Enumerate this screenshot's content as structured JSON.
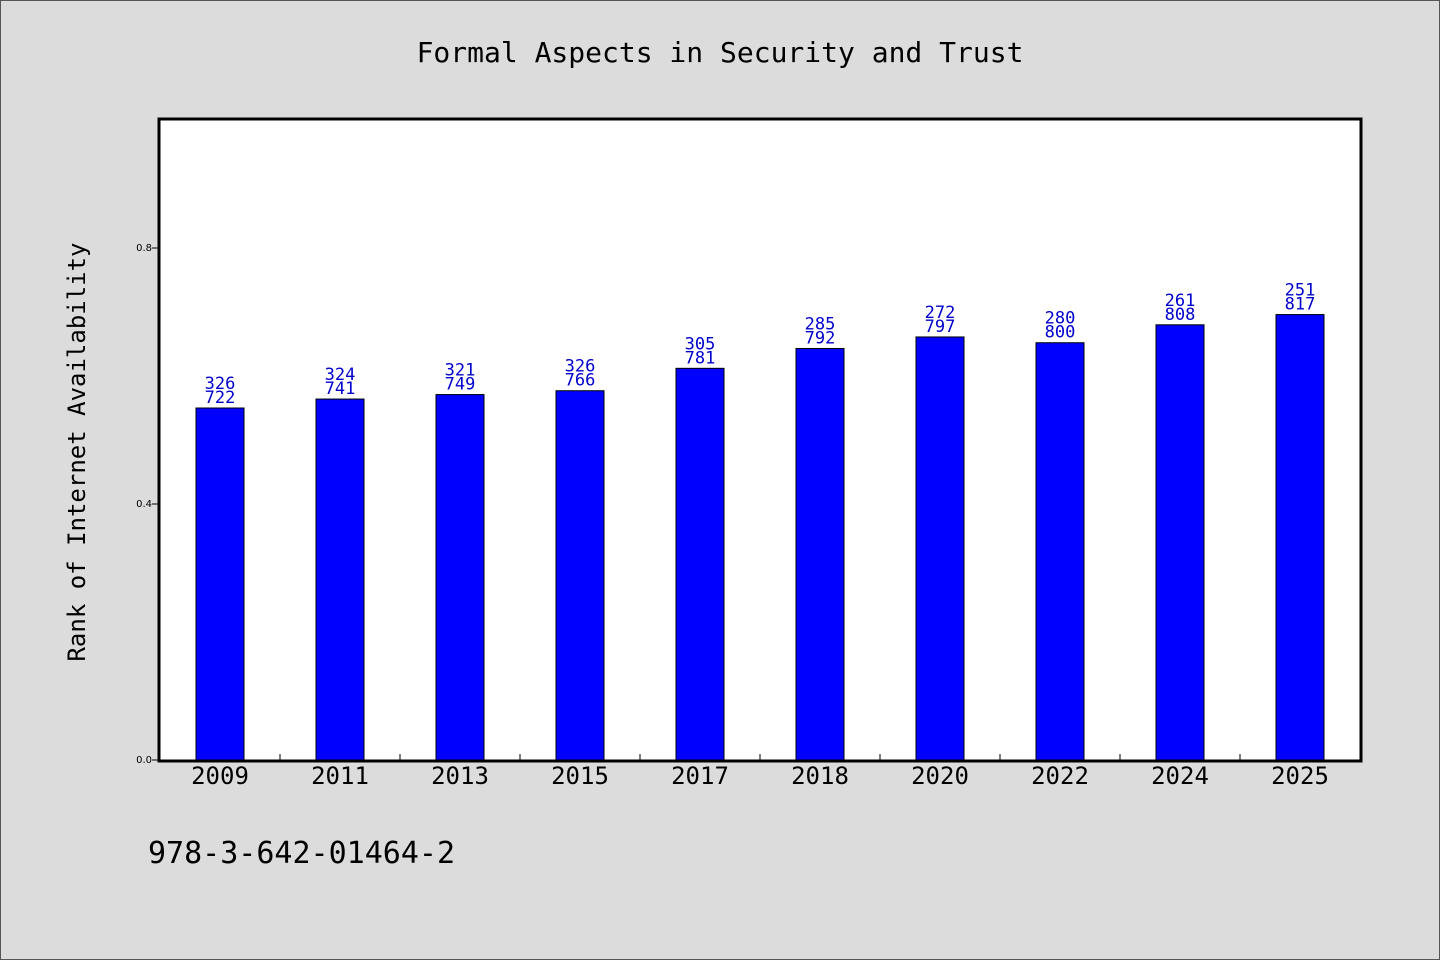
{
  "chart_data": {
    "type": "bar",
    "title": "Formal Aspects in Security and Trust",
    "xlabel": "",
    "ylabel": "Rank of Internet Availability",
    "categories": [
      "2009",
      "2011",
      "2013",
      "2015",
      "2017",
      "2018",
      "2020",
      "2022",
      "2024",
      "2025"
    ],
    "values": [
      0.55,
      0.564,
      0.571,
      0.577,
      0.612,
      0.643,
      0.661,
      0.652,
      0.68,
      0.696
    ],
    "data_labels": [
      [
        "326",
        "722"
      ],
      [
        "324",
        "741"
      ],
      [
        "321",
        "749"
      ],
      [
        "326",
        "766"
      ],
      [
        "305",
        "781"
      ],
      [
        "285",
        "792"
      ],
      [
        "272",
        "797"
      ],
      [
        "280",
        "800"
      ],
      [
        "261",
        "808"
      ],
      [
        "251",
        "817"
      ]
    ],
    "ylim": [
      0.0,
      1.0
    ],
    "yticks": [
      0.0,
      0.4,
      0.8
    ],
    "ytick_labels": [
      "0.0",
      "0.4",
      "0.8"
    ],
    "grid": false,
    "legend": "none",
    "bar_color": "#0000ff",
    "label_color": "#0000cc"
  },
  "footer_text": "978-3-642-01464-2"
}
